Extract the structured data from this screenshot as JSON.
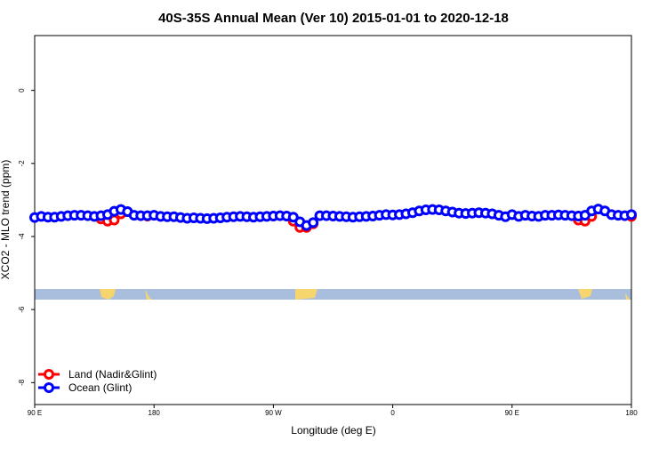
{
  "chart_data": {
    "type": "scatter",
    "title": "40S-35S Annual Mean (Ver 10)   2015-01-01 to 2020-12-18",
    "x_label": "Longitude (deg E)",
    "y_label": "XCO2 - MLO trend (ppm)",
    "xlim": [
      90,
      540
    ],
    "xticks": [
      {
        "value": 90,
        "label": "90 E"
      },
      {
        "value": 180,
        "label": "180"
      },
      {
        "value": 270,
        "label": "90 W"
      },
      {
        "value": 360,
        "label": "0"
      },
      {
        "value": 450,
        "label": "90 E"
      },
      {
        "value": 540,
        "label": "180"
      }
    ],
    "ylim": [
      -8.6,
      1.5
    ],
    "yticks": [
      0,
      -2,
      -4,
      -6,
      -8
    ],
    "grid": false,
    "legend": "bottom-left",
    "x": [
      90,
      95,
      100,
      105,
      110,
      115,
      120,
      125,
      130,
      135,
      140,
      145,
      150,
      155,
      160,
      165,
      170,
      175,
      180,
      185,
      190,
      195,
      200,
      205,
      210,
      215,
      220,
      225,
      230,
      235,
      240,
      245,
      250,
      255,
      260,
      265,
      270,
      275,
      280,
      285,
      290,
      295,
      300,
      305,
      310,
      315,
      320,
      325,
      330,
      335,
      340,
      345,
      350,
      355,
      360,
      365,
      370,
      375,
      380,
      385,
      390,
      395,
      400,
      405,
      410,
      415,
      420,
      425,
      430,
      435,
      440,
      445,
      450,
      455,
      460,
      465,
      470,
      475,
      480,
      485,
      490,
      495,
      500,
      505,
      510,
      515,
      520,
      525,
      530,
      535,
      540
    ],
    "series": [
      {
        "name": "Land (Nadir&Glint)",
        "color": "#ff0000",
        "values": [
          null,
          null,
          null,
          null,
          null,
          null,
          null,
          null,
          null,
          null,
          -3.52,
          -3.58,
          -3.55,
          -3.38,
          null,
          null,
          null,
          -3.44,
          null,
          null,
          null,
          null,
          null,
          null,
          null,
          null,
          null,
          null,
          null,
          null,
          null,
          null,
          null,
          null,
          null,
          null,
          null,
          null,
          null,
          -3.58,
          -3.75,
          -3.75,
          -3.65,
          null,
          null,
          null,
          null,
          null,
          null,
          null,
          null,
          null,
          null,
          null,
          null,
          null,
          null,
          null,
          null,
          null,
          null,
          null,
          null,
          null,
          null,
          null,
          null,
          null,
          null,
          null,
          null,
          null,
          null,
          null,
          null,
          null,
          null,
          null,
          null,
          null,
          null,
          null,
          -3.55,
          -3.58,
          -3.45,
          null,
          null,
          null,
          null,
          null,
          -3.45
        ]
      },
      {
        "name": "Ocean (Glint)",
        "color": "#0000ff",
        "values": [
          -3.48,
          -3.45,
          -3.47,
          -3.47,
          -3.45,
          -3.43,
          -3.42,
          -3.42,
          -3.43,
          -3.45,
          -3.43,
          -3.4,
          -3.31,
          -3.26,
          -3.32,
          -3.42,
          -3.43,
          -3.43,
          -3.42,
          -3.45,
          -3.46,
          -3.46,
          -3.48,
          -3.5,
          -3.49,
          -3.5,
          -3.51,
          -3.5,
          -3.49,
          -3.47,
          -3.46,
          -3.45,
          -3.46,
          -3.47,
          -3.46,
          -3.45,
          -3.44,
          -3.43,
          -3.44,
          -3.47,
          -3.6,
          -3.7,
          -3.62,
          -3.43,
          -3.43,
          -3.44,
          -3.45,
          -3.46,
          -3.47,
          -3.46,
          -3.45,
          -3.44,
          -3.42,
          -3.4,
          -3.41,
          -3.4,
          -3.38,
          -3.35,
          -3.3,
          -3.27,
          -3.26,
          -3.27,
          -3.3,
          -3.33,
          -3.36,
          -3.37,
          -3.36,
          -3.35,
          -3.36,
          -3.38,
          -3.42,
          -3.46,
          -3.4,
          -3.45,
          -3.42,
          -3.44,
          -3.45,
          -3.42,
          -3.42,
          -3.41,
          -3.42,
          -3.43,
          -3.44,
          -3.42,
          -3.3,
          -3.25,
          -3.3,
          -3.4,
          -3.42,
          -3.43,
          -3.4
        ]
      }
    ]
  }
}
